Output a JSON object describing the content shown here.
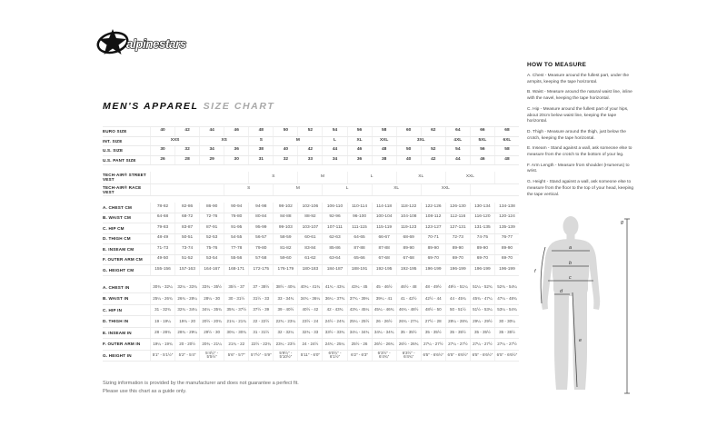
{
  "brand": {
    "wordmark": "alpinestars"
  },
  "page_title": {
    "primary": "MEN'S APPAREL",
    "secondary": "SIZE CHART"
  },
  "size_table": {
    "columns": 15,
    "sections": [
      {
        "id": "sizing",
        "rows": [
          {
            "id": "euro-size",
            "label": "EURO SIZE",
            "cells": [
              "40",
              "42",
              "44",
              "46",
              "48",
              "50",
              "52",
              "54",
              "56",
              "58",
              "60",
              "62",
              "64",
              "66",
              "68"
            ]
          },
          {
            "id": "int-size",
            "label": "INT. SIZE",
            "cells": [
              {
                "t": "XXS",
                "span": 2
              },
              {
                "t": "XS",
                "span": 2
              },
              {
                "t": "S"
              },
              {
                "t": "M",
                "span": 2
              },
              {
                "t": "L"
              },
              {
                "t": "XL"
              },
              {
                "t": "XXL"
              },
              {
                "t": "3XL",
                "span": 2
              },
              {
                "t": "4XL"
              },
              {
                "t": "5XL"
              },
              {
                "t": "6XL"
              }
            ]
          },
          {
            "id": "us-size",
            "label": "U.S. SIZE",
            "cells": [
              "30",
              "32",
              "34",
              "36",
              "38",
              "40",
              "42",
              "44",
              "46",
              "48",
              "50",
              "52",
              "54",
              "56",
              "58"
            ]
          },
          {
            "id": "us-pant-size",
            "label": "U.S. PANT SIZE",
            "cells": [
              "26",
              "28",
              "29",
              "30",
              "31",
              "32",
              "33",
              "34",
              "36",
              "38",
              "40",
              "42",
              "44",
              "46",
              "48"
            ]
          }
        ]
      },
      {
        "id": "tech-air",
        "rows": [
          {
            "id": "tech-air-street-vest",
            "label": "TECH-AIR® STREET VEST",
            "cells": [
              {
                "t": "",
                "span": 4
              },
              {
                "t": "S",
                "span": 2
              },
              {
                "t": "M",
                "span": 2
              },
              {
                "t": "L",
                "span": 2
              },
              {
                "t": "XL",
                "span": 2
              },
              {
                "t": "XXL",
                "span": 2
              },
              {
                "t": ""
              }
            ]
          },
          {
            "id": "tech-air-race-vest",
            "label": "TECH-AIR® RACE VEST",
            "cells": [
              {
                "t": "",
                "span": 3
              },
              {
                "t": "S",
                "span": 2
              },
              {
                "t": "M",
                "span": 2
              },
              {
                "t": "L",
                "span": 2
              },
              {
                "t": "XL",
                "span": 2
              },
              {
                "t": "XXL",
                "span": 2
              },
              {
                "t": "",
                "span": 2
              }
            ]
          }
        ]
      },
      {
        "id": "cm",
        "rows": [
          {
            "id": "chest-cm",
            "label": "A. CHEST CM",
            "cells": [
              "78-82",
              "82-86",
              "86-90",
              "90-94",
              "94-98",
              "98-102",
              "102-106",
              "106-110",
              "110-114",
              "114-118",
              "118-122",
              "122-126",
              "126-130",
              "130-134",
              "134-138"
            ]
          },
          {
            "id": "waist-cm",
            "label": "B. WAIST CM",
            "cells": [
              "64-68",
              "68-72",
              "72-76",
              "76-80",
              "80-84",
              "84-88",
              "88-92",
              "92-96",
              "96-100",
              "100-104",
              "104-108",
              "108-112",
              "112-116",
              "116-120",
              "120-124"
            ]
          },
          {
            "id": "hip-cm",
            "label": "C. HIP CM",
            "cells": [
              "79-83",
              "83-87",
              "87-91",
              "91-95",
              "95-99",
              "99-103",
              "103-107",
              "107-111",
              "111-115",
              "115-119",
              "119-123",
              "123-127",
              "127-131",
              "131-135",
              "135-139"
            ]
          },
          {
            "id": "thigh-cm",
            "label": "D. THIGH CM",
            "cells": [
              "48-49",
              "50-51",
              "52-53",
              "54-55",
              "56-57",
              "58-59",
              "60-61",
              "62-63",
              "64-65",
              "66-67",
              "68-69",
              "70-71",
              "72-73",
              "74-75",
              "76-77"
            ]
          },
          {
            "id": "inseam-cm",
            "label": "E. INSEAM CM",
            "cells": [
              "71-73",
              "73-74",
              "75-76",
              "77-78",
              "79-80",
              "81-82",
              "83-84",
              "85-86",
              "87-88",
              "87-88",
              "89-90",
              "89-90",
              "89-90",
              "89-90",
              "89-90"
            ]
          },
          {
            "id": "outer-arm-cm",
            "label": "F. OUTER ARM CM",
            "cells": [
              "49-50",
              "51-52",
              "53-54",
              "55-56",
              "57-58",
              "59-60",
              "61-62",
              "63-64",
              "65-66",
              "67-68",
              "67-68",
              "69-70",
              "69-70",
              "69-70",
              "69-70"
            ]
          },
          {
            "id": "height-cm",
            "label": "G. HEIGHT CM",
            "cells": [
              "155-156",
              "157-163",
              "164-167",
              "168-171",
              "172-175",
              "176-179",
              "180-183",
              "184-187",
              "188-191",
              "192-195",
              "192-195",
              "196-199",
              "196-199",
              "196-199",
              "196-199"
            ]
          }
        ]
      },
      {
        "id": "in",
        "rows": [
          {
            "id": "chest-in",
            "label": "A. CHEST IN",
            "cells": [
              "30¾ - 32¼",
              "32¼ - 33¾",
              "33¾ - 35½",
              "35½ - 37",
              "37 - 38½",
              "38½ - 40¼",
              "40¼ - 41¾",
              "41¾ - 43¼",
              "43¼ - 45",
              "45 - 46½",
              "46½ - 48",
              "48 - 49½",
              "49½ - 51¼",
              "51¼ - 52¾",
              "52¾ - 54¼"
            ]
          },
          {
            "id": "waist-in",
            "label": "B. WAIST IN",
            "cells": [
              "25¼ - 26¾",
              "26¾ - 28¼",
              "28¼ - 30",
              "30 - 31½",
              "31½ - 33",
              "33 - 34¾",
              "34¾ - 36¼",
              "36¼ - 37¾",
              "37¾ - 39¼",
              "39¼ - 41",
              "41 - 42½",
              "42½ - 44",
              "44 - 45¾",
              "45¾ - 47¼",
              "47¼ - 48¾"
            ]
          },
          {
            "id": "hip-in",
            "label": "C. HIP IN",
            "cells": [
              "31 - 32¾",
              "32¾ - 34¼",
              "34¼ - 35¾",
              "35¾ - 37½",
              "37½ - 39",
              "39 - 40½",
              "40½ - 42",
              "42 - 43¾",
              "43¾ - 45¼",
              "45¼ - 46¾",
              "46¾ - 48½",
              "48½ - 50",
              "50 - 51½",
              "51½ - 53¼",
              "53¼ - 54¾"
            ]
          },
          {
            "id": "thigh-in",
            "label": "D. THIGH IN",
            "cells": [
              "19 - 19¼",
              "19¾ - 20",
              "20½ - 20¾",
              "21¼ - 21¾",
              "22 - 22½",
              "22¾ - 23¼",
              "23½ - 24",
              "24½ - 24¾",
              "25¼ - 25½",
              "26 - 26½",
              "26¾ - 27¼",
              "27½ - 28",
              "28¼ - 28¾",
              "29¼ - 29½",
              "30 - 30¼"
            ]
          },
          {
            "id": "inseam-in",
            "label": "E. INSEAM IN",
            "cells": [
              "28 - 28¾",
              "28¾ - 29¼",
              "29½ - 30",
              "30¼ - 30¾",
              "31 - 31½",
              "32 - 32¼",
              "32¾ - 33",
              "33½ - 33¾",
              "34¼ - 34¾",
              "34¼ - 34¾",
              "35 - 35½",
              "35 - 35½",
              "35 - 35½",
              "35 - 35½",
              "35 - 35½"
            ]
          },
          {
            "id": "outer-arm-in",
            "label": "F. OUTER ARM IN",
            "cells": [
              "19¼ - 19¾",
              "20 - 20½",
              "20¾ - 21¼",
              "21¾ - 22",
              "22½ - 22¾",
              "23¼ - 23½",
              "24 - 24½",
              "24¾ - 25¼",
              "25½ - 26",
              "26½ - 26¾",
              "26½ - 26¾",
              "27¼ - 27½",
              "27¼ - 27½",
              "27¼ - 27½",
              "27¼ - 27½"
            ]
          },
          {
            "id": "height-in",
            "label": "G. HEIGHT IN",
            "cells": [
              "5′1″ - 5′1½″",
              "5′2″ - 5′4″",
              "5′4½″ - 5′5½″",
              "5′6″ - 5′7″",
              "5′7½″ - 5′9″",
              "5′9½″ - 5′10½″",
              "5′11″ - 6′0″",
              "6′0½″ - 6′1½″",
              "6′2″ - 6′3″",
              "6′3½″ - 6′4¾″",
              "6′3½″ - 6′4¾″",
              "6′5″ - 6′6½″",
              "6′5″ - 6′6½″",
              "6′5″ - 6′6½″",
              "6′5″ - 6′6½″"
            ]
          }
        ]
      }
    ]
  },
  "how_to_measure": {
    "heading": "HOW TO MEASURE",
    "items": [
      "A. Chest - Measure around the fullest part, under the armpits, keeping the tape horizontal.",
      "B. Waist - Measure around the natural waist line, inline with the navel, keeping the tape horizontal.",
      "C. Hip - Measure around the fullest part of your hips, about 20cm below waist line, keeping the tape horizontal.",
      "D. Thigh - Measure around the thigh, just below the crotch, keeping the tape horizontal.",
      "E. Inseam - Stand against a wall, ask someone else to measure from the crotch to the bottom of your leg.",
      "F. Arm Length - Measure from shoulder (Humerus) to wrist.",
      "G. Height - Stand against a wall, ask someone else to measure from the floor to the top of your head, keeping the tape vertical."
    ]
  },
  "figure": {
    "labels": {
      "a": "a",
      "b": "b",
      "c": "c",
      "d": "d",
      "e": "e",
      "f": "f",
      "g": "g"
    }
  },
  "footer": {
    "line1": "Sizing information is provided by the manufacturer and does not guarantee a perfect fit.",
    "line2": "Please use this chart as a guide only."
  }
}
